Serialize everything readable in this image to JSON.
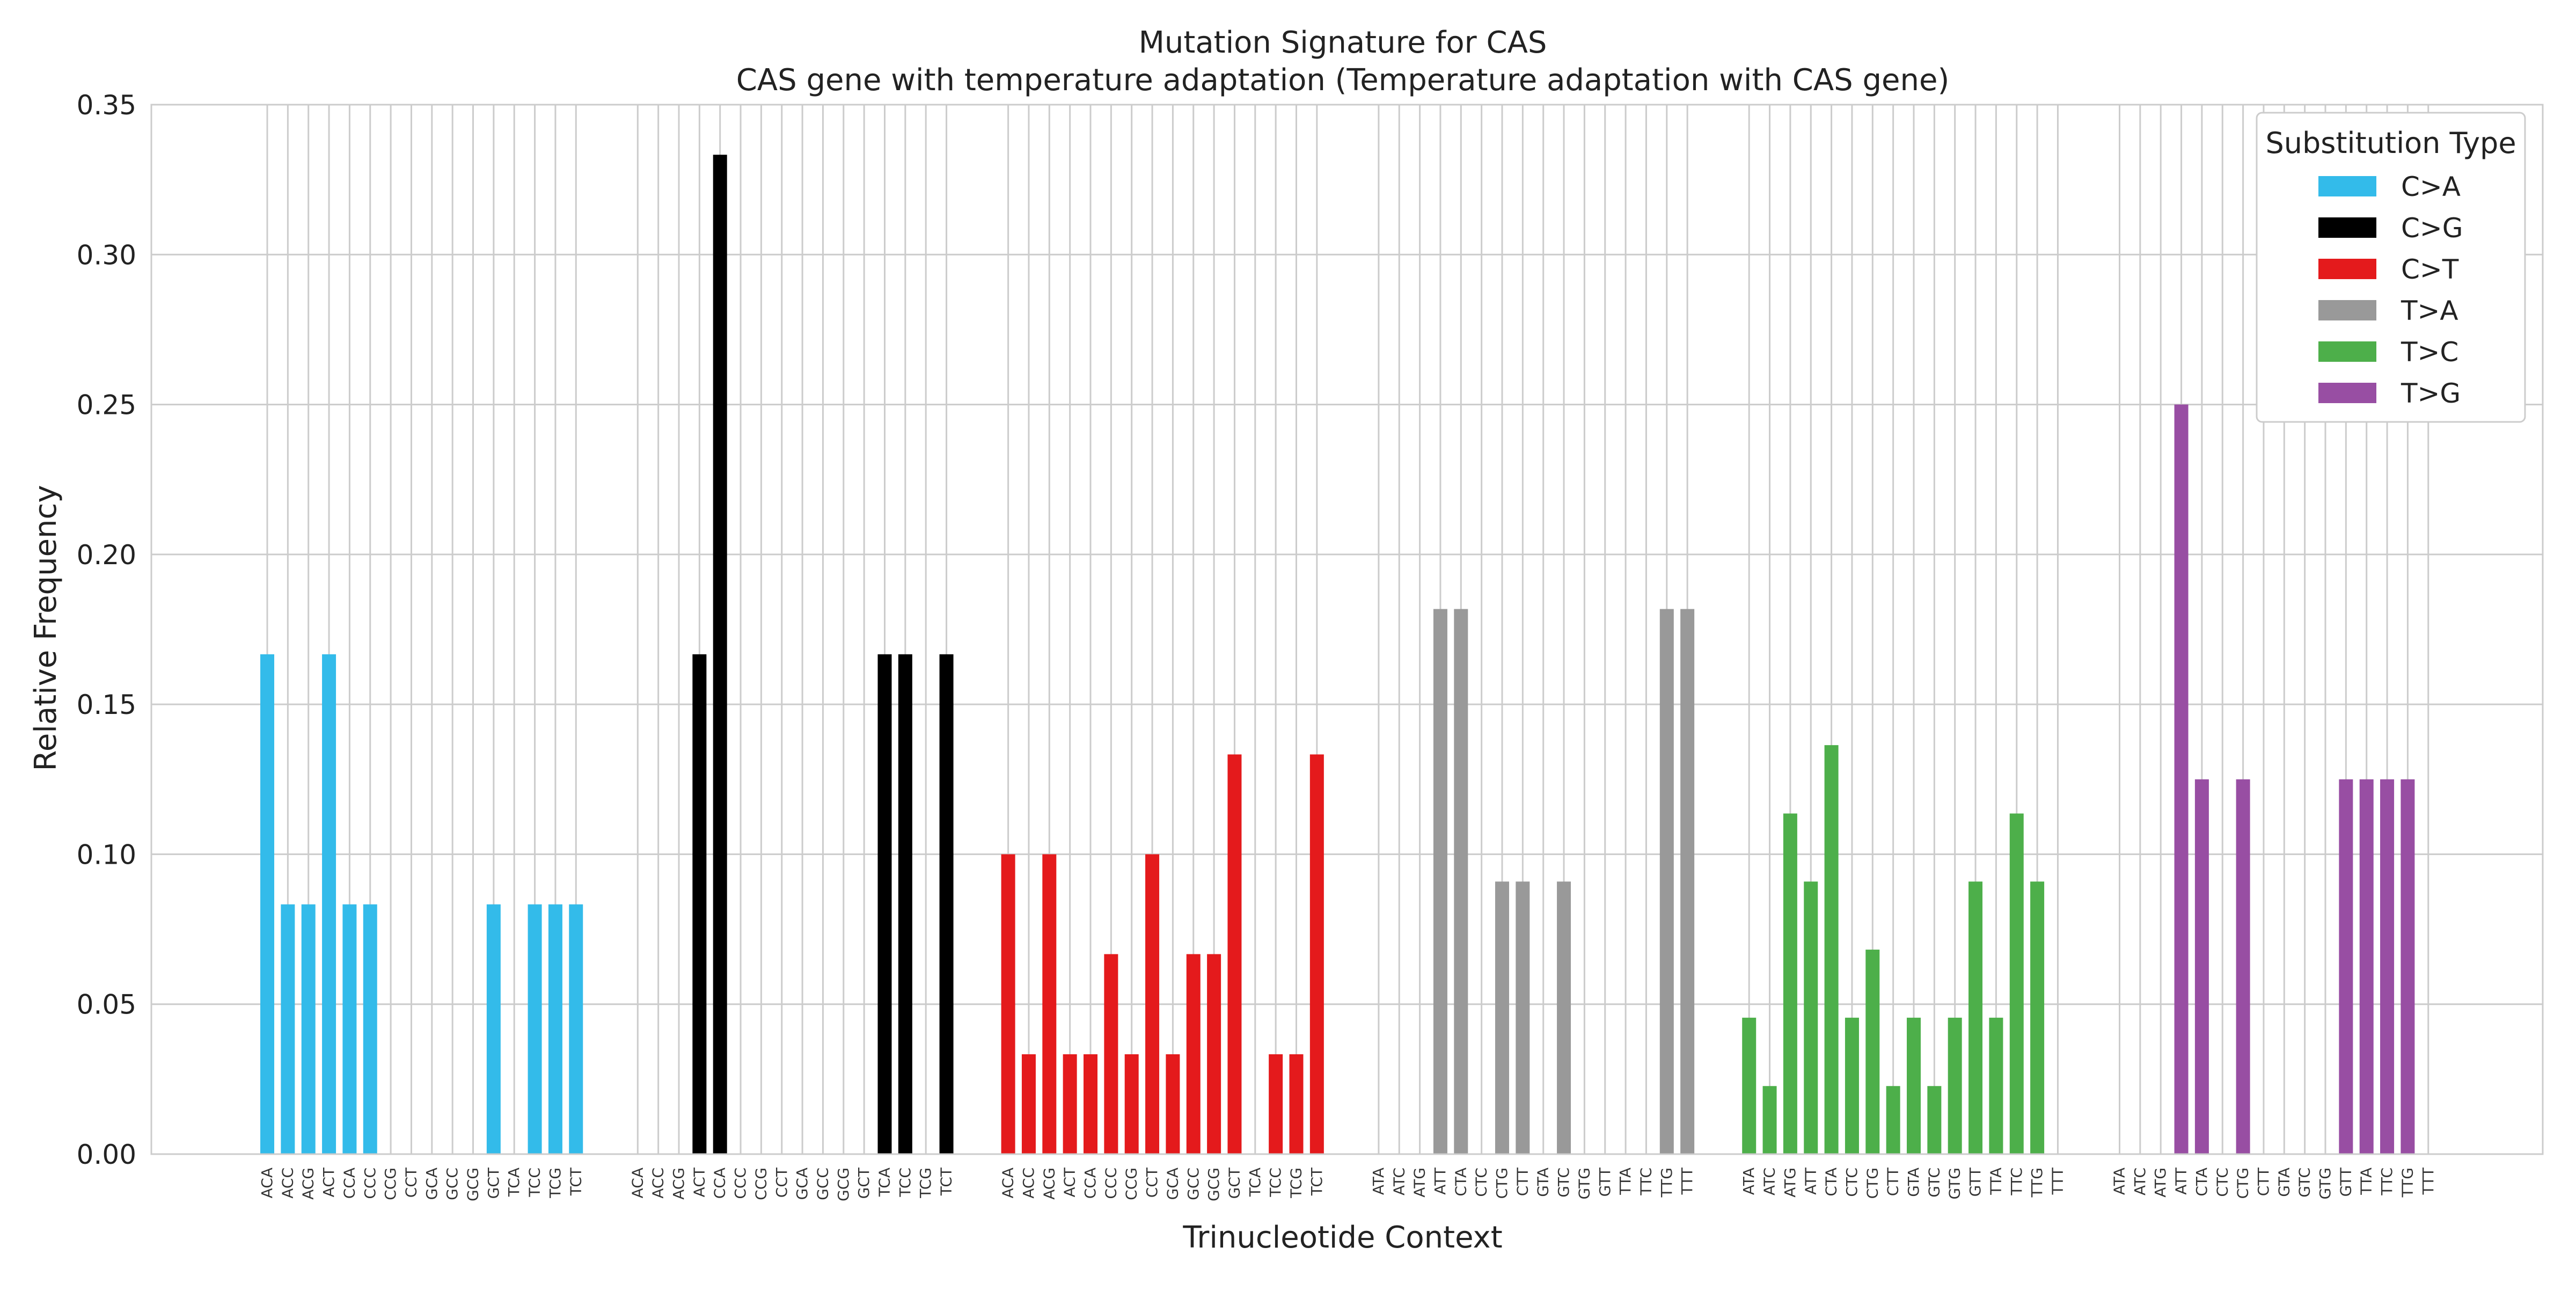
{
  "chart_data": {
    "type": "bar",
    "title": "Mutation Signature for CAS",
    "subtitle": "CAS gene with temperature adaptation (Temperature adaptation with CAS gene)",
    "xlabel": "Trinucleotide Context",
    "ylabel": "Relative Frequency",
    "ylim": [
      0,
      0.35
    ],
    "yticks": [
      "0.00",
      "0.05",
      "0.10",
      "0.15",
      "0.20",
      "0.25",
      "0.30",
      "0.35"
    ],
    "grid": true,
    "legend": {
      "title": "Substitution Type",
      "position": "top-right"
    },
    "groups": [
      {
        "name": "C>A",
        "color": "#33bbea",
        "contexts": [
          "ACA",
          "ACC",
          "ACG",
          "ACT",
          "CCA",
          "CCC",
          "CCG",
          "CCT",
          "GCA",
          "GCC",
          "GCG",
          "GCT",
          "TCA",
          "TCC",
          "TCG",
          "TCT"
        ],
        "values": [
          0.1667,
          0.0833,
          0.0833,
          0.1667,
          0.0833,
          0.0833,
          0,
          0,
          0,
          0,
          0,
          0.0833,
          0,
          0.0833,
          0.0833,
          0.0833
        ]
      },
      {
        "name": "C>G",
        "color": "#000000",
        "contexts": [
          "ACA",
          "ACC",
          "ACG",
          "ACT",
          "CCA",
          "CCC",
          "CCG",
          "CCT",
          "GCA",
          "GCC",
          "GCG",
          "GCT",
          "TCA",
          "TCC",
          "TCG",
          "TCT"
        ],
        "values": [
          0,
          0,
          0,
          0.1667,
          0.3333,
          0,
          0,
          0,
          0,
          0,
          0,
          0,
          0.1667,
          0.1667,
          0,
          0.1667
        ]
      },
      {
        "name": "C>T",
        "color": "#e41a1c",
        "contexts": [
          "ACA",
          "ACC",
          "ACG",
          "ACT",
          "CCA",
          "CCC",
          "CCG",
          "CCT",
          "GCA",
          "GCC",
          "GCG",
          "GCT",
          "TCA",
          "TCC",
          "TCG",
          "TCT"
        ],
        "values": [
          0.1,
          0.0333,
          0.1,
          0.0333,
          0.0333,
          0.0667,
          0.0333,
          0.1,
          0.0333,
          0.0667,
          0.0667,
          0.1333,
          0,
          0.0333,
          0.0333,
          0.1333
        ]
      },
      {
        "name": "T>A",
        "color": "#999999",
        "contexts": [
          "ATA",
          "ATC",
          "ATG",
          "ATT",
          "CTA",
          "CTC",
          "CTG",
          "CTT",
          "GTA",
          "GTC",
          "GTG",
          "GTT",
          "TTA",
          "TTC",
          "TTG",
          "TTT"
        ],
        "values": [
          0,
          0,
          0,
          0.1818,
          0.1818,
          0,
          0.0909,
          0.0909,
          0,
          0.0909,
          0,
          0,
          0,
          0,
          0.1818,
          0.1818
        ]
      },
      {
        "name": "T>C",
        "color": "#4daf4a",
        "contexts": [
          "ATA",
          "ATC",
          "ATG",
          "ATT",
          "CTA",
          "CTC",
          "CTG",
          "CTT",
          "GTA",
          "GTC",
          "GTG",
          "GTT",
          "TTA",
          "TTC",
          "TTG",
          "TTT"
        ],
        "values": [
          0.0455,
          0.0227,
          0.1136,
          0.0909,
          0.1364,
          0.0455,
          0.0682,
          0.0227,
          0.0455,
          0.0227,
          0.0455,
          0.0909,
          0.0455,
          0.1136,
          0.0909,
          0
        ]
      },
      {
        "name": "T>G",
        "color": "#984ea3",
        "contexts": [
          "ATA",
          "ATC",
          "ATG",
          "ATT",
          "CTA",
          "CTC",
          "CTG",
          "CTT",
          "GTA",
          "GTC",
          "GTG",
          "GTT",
          "TTA",
          "TTC",
          "TTG",
          "TTT"
        ],
        "values": [
          0,
          0,
          0,
          0.25,
          0.125,
          0,
          0.125,
          0,
          0,
          0,
          0,
          0.125,
          0.125,
          0.125,
          0.125,
          0
        ]
      }
    ]
  }
}
